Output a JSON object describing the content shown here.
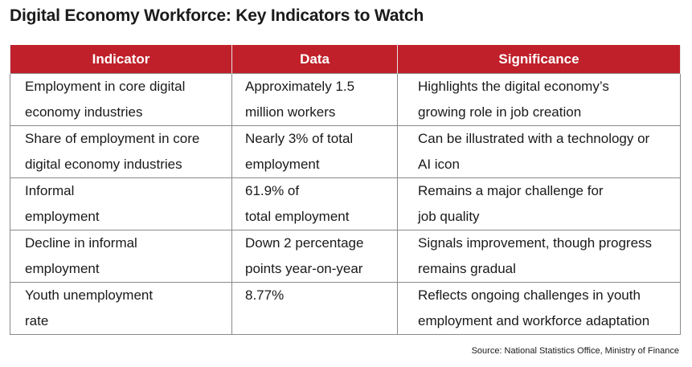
{
  "title": "Digital Economy Workforce: Key Indicators to Watch",
  "table": {
    "headers": [
      "Indicator",
      "Data",
      "Significance"
    ],
    "rows": [
      {
        "indicator": [
          "Employment in core digital",
          "economy industries"
        ],
        "data": [
          "Approximately 1.5",
          "million workers"
        ],
        "significance": [
          "Highlights the digital economy’s",
          "growing role in job creation"
        ]
      },
      {
        "indicator": [
          "Share of employment in core",
          "digital economy industries"
        ],
        "data": [
          "Nearly 3% of total",
          "employment"
        ],
        "significance": [
          "Can be illustrated with a technology or",
          "AI icon"
        ]
      },
      {
        "indicator": [
          "Informal",
          "employment"
        ],
        "data": [
          "61.9% of",
          "total employment"
        ],
        "significance": [
          "Remains a major challenge for",
          "job quality"
        ]
      },
      {
        "indicator": [
          "Decline in informal",
          "employment"
        ],
        "data": [
          "Down 2 percentage",
          "points year-on-year"
        ],
        "significance": [
          "Signals improvement, though progress",
          "remains gradual"
        ]
      },
      {
        "indicator": [
          "Youth unemployment",
          "rate"
        ],
        "data": [
          "8.77%"
        ],
        "significance": [
          "Reflects ongoing challenges in youth",
          "employment and workforce adaptation"
        ]
      }
    ]
  },
  "source": "Source: National Statistics Office, Ministry of Finance",
  "colors": {
    "header_bg": "#c0202a",
    "header_text": "#ffffff",
    "border": "#8a8a8a"
  }
}
